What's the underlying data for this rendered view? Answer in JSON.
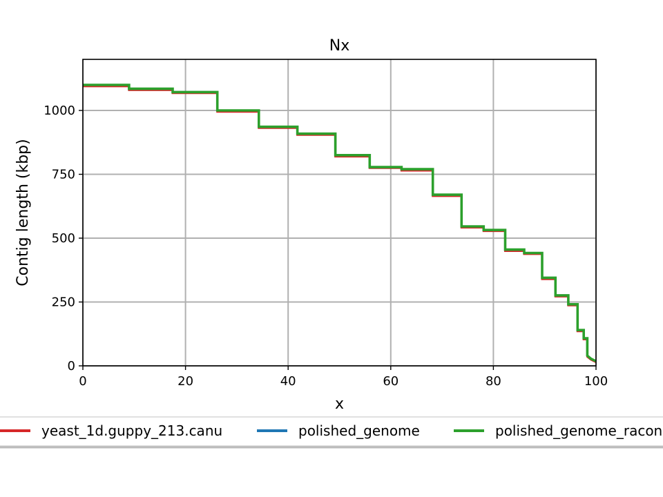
{
  "chart_data": {
    "type": "line",
    "title": "Nx",
    "xlabel": "x",
    "ylabel": "Contig length (kbp)",
    "xlim": [
      0,
      100
    ],
    "ylim": [
      0,
      1200
    ],
    "xticks": [
      "0",
      "20",
      "40",
      "60",
      "80",
      "100"
    ],
    "yticks": [
      "0",
      "250",
      "500",
      "750",
      "1000"
    ],
    "grid": true,
    "legend_position": "bottom",
    "series": [
      {
        "name": "yeast_1d.guppy_213.canu",
        "color": "#d62728",
        "x": [
          0,
          9,
          9,
          17.5,
          17.5,
          26.2,
          26.2,
          34.3,
          34.3,
          41.8,
          41.8,
          49.2,
          49.2,
          55.9,
          55.9,
          62.1,
          62.1,
          68.2,
          68.2,
          73.8,
          73.8,
          78.1,
          78.1,
          82.3,
          82.3,
          86.0,
          86.0,
          89.5,
          89.5,
          92.1,
          92.1,
          94.6,
          94.6,
          96.4,
          96.4,
          97.6,
          97.6,
          98.3,
          98.3,
          99.0,
          100
        ],
        "y": [
          1095,
          1095,
          1080,
          1080,
          1068,
          1068,
          995,
          995,
          932,
          932,
          905,
          905,
          820,
          820,
          775,
          775,
          765,
          765,
          665,
          665,
          542,
          542,
          528,
          528,
          450,
          450,
          438,
          438,
          340,
          340,
          272,
          272,
          237,
          237,
          136,
          136,
          104,
          104,
          36,
          25,
          15
        ]
      },
      {
        "name": "polished_genome",
        "color": "#1f77b4",
        "x": [
          0,
          9,
          9,
          17.5,
          17.5,
          26.2,
          26.2,
          34.3,
          34.3,
          41.8,
          41.8,
          49.2,
          49.2,
          55.9,
          55.9,
          62.1,
          62.1,
          68.2,
          68.2,
          73.8,
          73.8,
          78.1,
          78.1,
          82.3,
          82.3,
          86.0,
          86.0,
          89.5,
          89.5,
          92.1,
          92.1,
          94.6,
          94.6,
          96.4,
          96.4,
          97.6,
          97.6,
          98.3,
          98.3,
          99.0,
          100
        ],
        "y": [
          1100,
          1100,
          1085,
          1085,
          1072,
          1072,
          1000,
          1000,
          936,
          936,
          909,
          909,
          825,
          825,
          778,
          778,
          770,
          770,
          670,
          670,
          546,
          546,
          532,
          532,
          455,
          455,
          442,
          442,
          345,
          345,
          276,
          276,
          241,
          241,
          140,
          140,
          108,
          108,
          40,
          28,
          18
        ]
      },
      {
        "name": "polished_genome_racon",
        "color": "#2ca02c",
        "x": [
          0,
          9,
          9,
          17.5,
          17.5,
          26.2,
          26.2,
          34.3,
          34.3,
          41.8,
          41.8,
          49.2,
          49.2,
          55.9,
          55.9,
          62.1,
          62.1,
          68.2,
          68.2,
          73.8,
          73.8,
          78.1,
          78.1,
          82.3,
          82.3,
          86.0,
          86.0,
          89.5,
          89.5,
          92.1,
          92.1,
          94.6,
          94.6,
          96.4,
          96.4,
          97.6,
          97.6,
          98.3,
          98.3,
          99.0,
          100
        ],
        "y": [
          1100,
          1100,
          1085,
          1085,
          1072,
          1072,
          1000,
          1000,
          936,
          936,
          909,
          909,
          825,
          825,
          778,
          778,
          770,
          770,
          670,
          670,
          546,
          546,
          532,
          532,
          455,
          455,
          442,
          442,
          345,
          345,
          276,
          276,
          241,
          241,
          140,
          140,
          108,
          108,
          40,
          28,
          18
        ]
      }
    ]
  }
}
